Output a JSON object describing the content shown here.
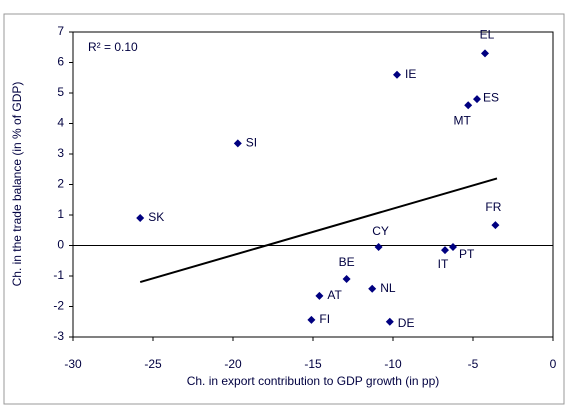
{
  "chart_data": {
    "type": "scatter",
    "x_label": "Ch. in export contribution to GDP growth (in pp)",
    "y_label": "Ch. in the trade balance (in % of GDP)",
    "annotation": "R² = 0.10",
    "labels": [
      "EL",
      "IE",
      "ES",
      "MT",
      "SI",
      "SK",
      "FR",
      "CY",
      "IT",
      "PT",
      "BE",
      "NL",
      "AT",
      "FI",
      "DE"
    ],
    "x": [
      -4.25,
      -9.75,
      -4.75,
      -5.3,
      -19.7,
      -25.8,
      -3.6,
      -10.9,
      -6.75,
      -6.25,
      -12.9,
      -11.3,
      -14.6,
      -15.1,
      -10.2
    ],
    "y": [
      6.3,
      5.6,
      4.8,
      4.6,
      3.35,
      0.9,
      0.67,
      -0.05,
      -0.15,
      -0.05,
      -1.1,
      -1.42,
      -1.65,
      -2.44,
      -2.5
    ],
    "color": "#000080",
    "trendline": {
      "x": [
        -25.8,
        -3.5
      ],
      "y": [
        -1.2,
        2.2
      ],
      "color": "#000000"
    },
    "xlim": [
      -30,
      0
    ],
    "xticks": [
      -30,
      -25,
      -20,
      -15,
      -10,
      -5,
      0
    ],
    "ylim": [
      -3,
      7
    ],
    "yticks": [
      -3,
      -2,
      -1,
      0,
      1,
      2,
      3,
      4,
      5,
      6,
      7
    ]
  }
}
